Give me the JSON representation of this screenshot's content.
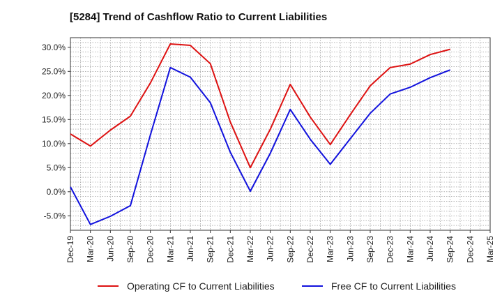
{
  "chart_data": {
    "type": "line",
    "title": "[5284]  Trend of Cashflow Ratio to Current Liabilities",
    "xlabel": "",
    "ylabel": "",
    "categories": [
      "Dec-19",
      "Mar-20",
      "Jun-20",
      "Sep-20",
      "Dec-20",
      "Mar-21",
      "Jun-21",
      "Sep-21",
      "Dec-21",
      "Mar-22",
      "Jun-22",
      "Sep-22",
      "Dec-22",
      "Mar-23",
      "Jun-23",
      "Sep-23",
      "Dec-23",
      "Mar-24",
      "Jun-24",
      "Sep-24",
      "Dec-24",
      "Mar-25"
    ],
    "ylim": [
      -8,
      32
    ],
    "yticks": [
      -5,
      0,
      5,
      10,
      15,
      20,
      25,
      30
    ],
    "ytick_labels": [
      "-5.0%",
      "0.0%",
      "5.0%",
      "10.0%",
      "15.0%",
      "20.0%",
      "25.0%",
      "30.0%"
    ],
    "grid": true,
    "legend_position": "bottom",
    "series": [
      {
        "name": "Operating CF to Current Liabilities",
        "color": "#dd1111",
        "values": [
          12.0,
          9.5,
          12.8,
          15.7,
          22.6,
          30.7,
          30.4,
          26.6,
          14.5,
          5.0,
          13.0,
          22.3,
          15.5,
          9.8,
          16.0,
          22.0,
          25.8,
          26.5,
          28.5,
          29.6,
          null,
          null
        ]
      },
      {
        "name": "Free CF to Current Liabilities",
        "color": "#1111dd",
        "values": [
          1.0,
          -6.8,
          -5.1,
          -2.9,
          11.8,
          25.8,
          23.8,
          18.5,
          8.2,
          0.1,
          8.0,
          17.1,
          10.9,
          5.7,
          11.0,
          16.3,
          20.3,
          21.7,
          23.7,
          25.3,
          null,
          null
        ]
      }
    ]
  }
}
